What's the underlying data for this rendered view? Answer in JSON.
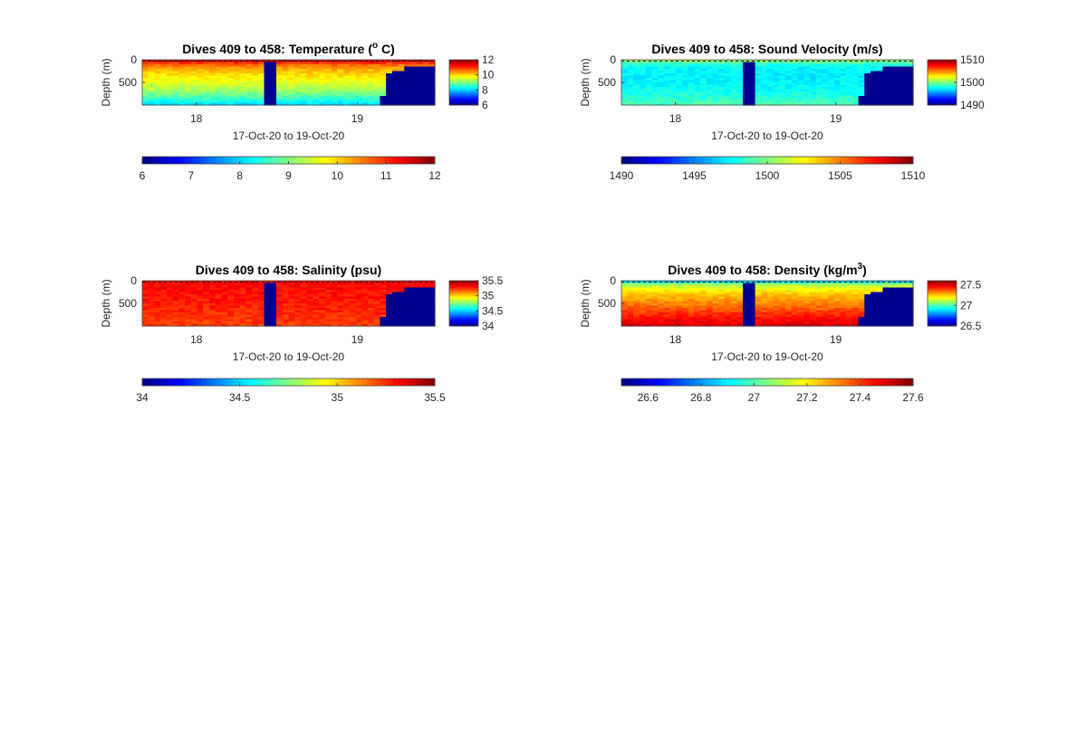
{
  "chart_data": [
    {
      "type": "heatmap",
      "title": "Dives 409 to 458: Temperature (",
      "title_sup": "o",
      "title_end": " C)",
      "xlabel": "17-Oct-20 to 19-Oct-20",
      "ylabel": "Depth (m)",
      "ytick_labels": [
        "0",
        "500"
      ],
      "xtick_labels": [
        "18",
        "19"
      ],
      "ylim": [
        0,
        1000
      ],
      "y_reversed": true,
      "colormap": "jet",
      "clim": [
        6,
        12
      ],
      "side_colorbar_ticks": [
        "12",
        "10",
        "8",
        "6"
      ],
      "bottom_colorbar_ticks": [
        "6",
        "7",
        "8",
        "9",
        "10",
        "11",
        "12"
      ],
      "profile": [
        {
          "depth": 0,
          "value": 11.8
        },
        {
          "depth": 60,
          "value": 11.0
        },
        {
          "depth": 150,
          "value": 10.4
        },
        {
          "depth": 300,
          "value": 10.0
        },
        {
          "depth": 500,
          "value": 9.6
        },
        {
          "depth": 700,
          "value": 9.1
        },
        {
          "depth": 850,
          "value": 8.6
        },
        {
          "depth": 1000,
          "value": 8.0
        }
      ]
    },
    {
      "type": "heatmap",
      "title": "Dives 409 to 458: Sound Velocity (m/s)",
      "xlabel": "17-Oct-20 to 19-Oct-20",
      "ylabel": "Depth (m)",
      "ytick_labels": [
        "0",
        "500"
      ],
      "xtick_labels": [
        "18",
        "19"
      ],
      "ylim": [
        0,
        1000
      ],
      "y_reversed": true,
      "colormap": "jet",
      "clim": [
        1490,
        1510
      ],
      "side_colorbar_ticks": [
        "1510",
        "1500",
        "1490"
      ],
      "bottom_colorbar_ticks": [
        "1490",
        "1495",
        "1500",
        "1505",
        "1510"
      ],
      "profile": [
        {
          "depth": 0,
          "value": 1501.5
        },
        {
          "depth": 60,
          "value": 1499.0
        },
        {
          "depth": 150,
          "value": 1497.5
        },
        {
          "depth": 400,
          "value": 1497.2
        },
        {
          "depth": 700,
          "value": 1497.8
        },
        {
          "depth": 1000,
          "value": 1499.0
        }
      ]
    },
    {
      "type": "heatmap",
      "title": "Dives 409 to 458: Salinity (psu)",
      "xlabel": "17-Oct-20 to 19-Oct-20",
      "ylabel": "Depth (m)",
      "ytick_labels": [
        "0",
        "500"
      ],
      "xtick_labels": [
        "18",
        "19"
      ],
      "ylim": [
        0,
        1000
      ],
      "y_reversed": true,
      "colormap": "jet",
      "clim": [
        34,
        35.5
      ],
      "side_colorbar_ticks": [
        "35.5",
        "35",
        "34.5",
        "34"
      ],
      "bottom_colorbar_ticks": [
        "34",
        "34.5",
        "35",
        "35.5"
      ],
      "profile": [
        {
          "depth": 0,
          "value": 35.32
        },
        {
          "depth": 200,
          "value": 35.3
        },
        {
          "depth": 500,
          "value": 35.27
        },
        {
          "depth": 800,
          "value": 35.24
        },
        {
          "depth": 1000,
          "value": 35.22
        }
      ]
    },
    {
      "type": "heatmap",
      "title": "Dives 409 to 458: Density (kg/m",
      "title_sup": "3",
      "title_end": ")",
      "xlabel": "17-Oct-20 to 19-Oct-20",
      "ylabel": "Depth (m)",
      "ytick_labels": [
        "0",
        "500"
      ],
      "xtick_labels": [
        "18",
        "19"
      ],
      "ylim": [
        0,
        1000
      ],
      "y_reversed": true,
      "colormap": "jet",
      "clim": [
        26.5,
        27.6
      ],
      "side_colorbar_ticks": [
        "27.5",
        "27",
        "26.5"
      ],
      "bottom_colorbar_ticks": [
        "26.6",
        "26.8",
        "27",
        "27.2",
        "27.4",
        "27.6"
      ],
      "profile": [
        {
          "depth": 0,
          "value": 26.75
        },
        {
          "depth": 60,
          "value": 27.05
        },
        {
          "depth": 150,
          "value": 27.15
        },
        {
          "depth": 300,
          "value": 27.25
        },
        {
          "depth": 500,
          "value": 27.32
        },
        {
          "depth": 700,
          "value": 27.4
        },
        {
          "depth": 850,
          "value": 27.46
        },
        {
          "depth": 1000,
          "value": 27.5
        }
      ]
    }
  ],
  "colors": {
    "no_data": "#00008f",
    "jet_low": "#00008f",
    "jet_high": "#800000"
  }
}
